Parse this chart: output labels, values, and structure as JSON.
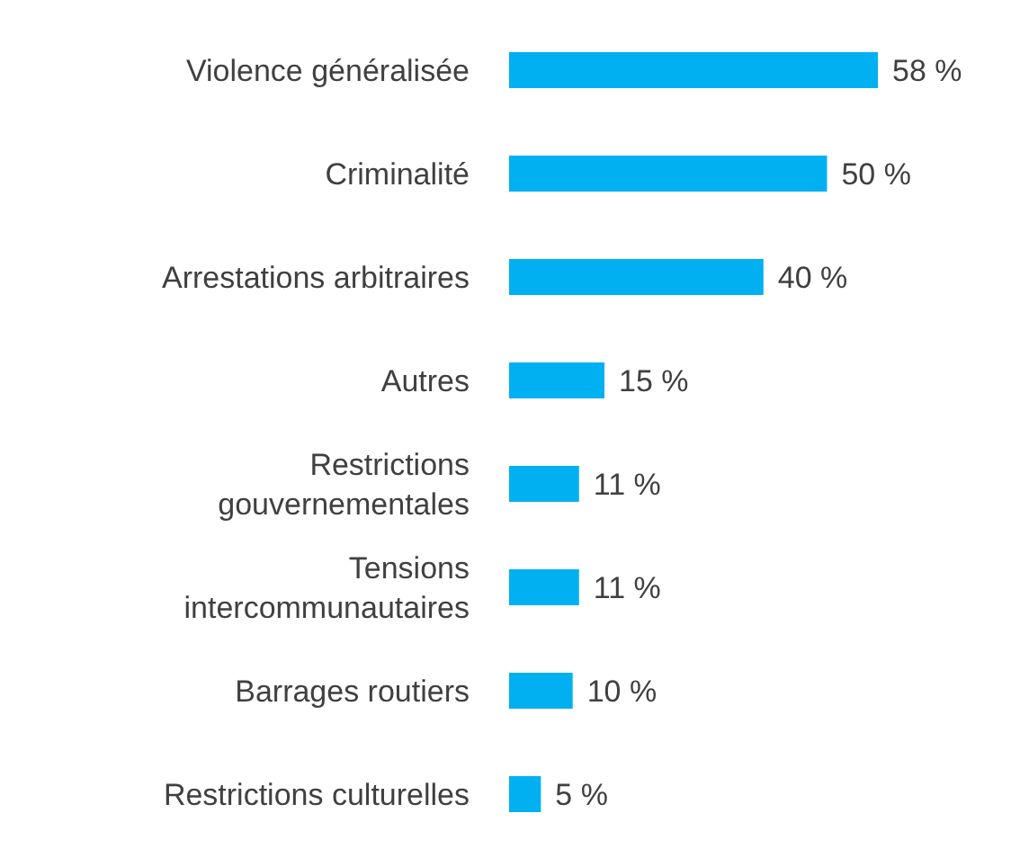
{
  "chart_data": {
    "type": "bar",
    "orientation": "horizontal",
    "tick_labels": "y",
    "categories": [
      "Violence généralisée",
      "Criminalité",
      "Arrestations arbitraires",
      "Autres",
      "Restrictions gouvernementales",
      "Tensions intercommunautaires",
      "Barrages routiers",
      "Restrictions culturelles"
    ],
    "values": [
      58,
      50,
      40,
      15,
      11,
      11,
      10,
      5
    ],
    "value_labels": [
      "58 %",
      "50 %",
      "40 %",
      "15 %",
      "11 %",
      "11 %",
      "10 %",
      "5 %"
    ],
    "color": "#00b0f0"
  }
}
